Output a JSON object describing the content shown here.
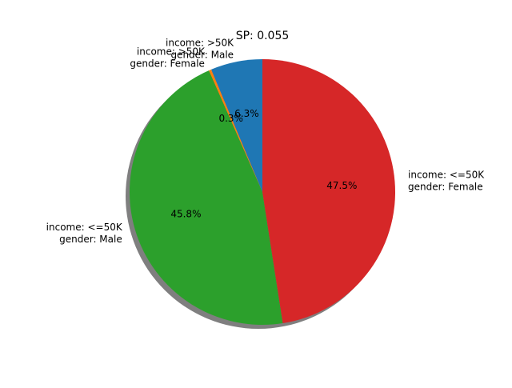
{
  "chart_data": {
    "type": "pie",
    "title": "SP: 0.055",
    "shadow": true,
    "start_angle_deg": 90,
    "direction": "counterclockwise",
    "slices": [
      {
        "label_lines": [
          "income: >50K",
          "gender: Male"
        ],
        "percent": 6.3,
        "pct_label": "6.3%",
        "color": "#1f77b4"
      },
      {
        "label_lines": [
          "income: >50K",
          "gender: Female"
        ],
        "percent": 0.3,
        "pct_label": "0.3%",
        "color": "#ff7f0e"
      },
      {
        "label_lines": [
          "income: <=50K",
          "gender: Male"
        ],
        "percent": 45.8,
        "pct_label": "45.8%",
        "color": "#2ca02c"
      },
      {
        "label_lines": [
          "income: <=50K",
          "gender: Female"
        ],
        "percent": 47.5,
        "pct_label": "47.5%",
        "color": "#d62728"
      }
    ]
  }
}
